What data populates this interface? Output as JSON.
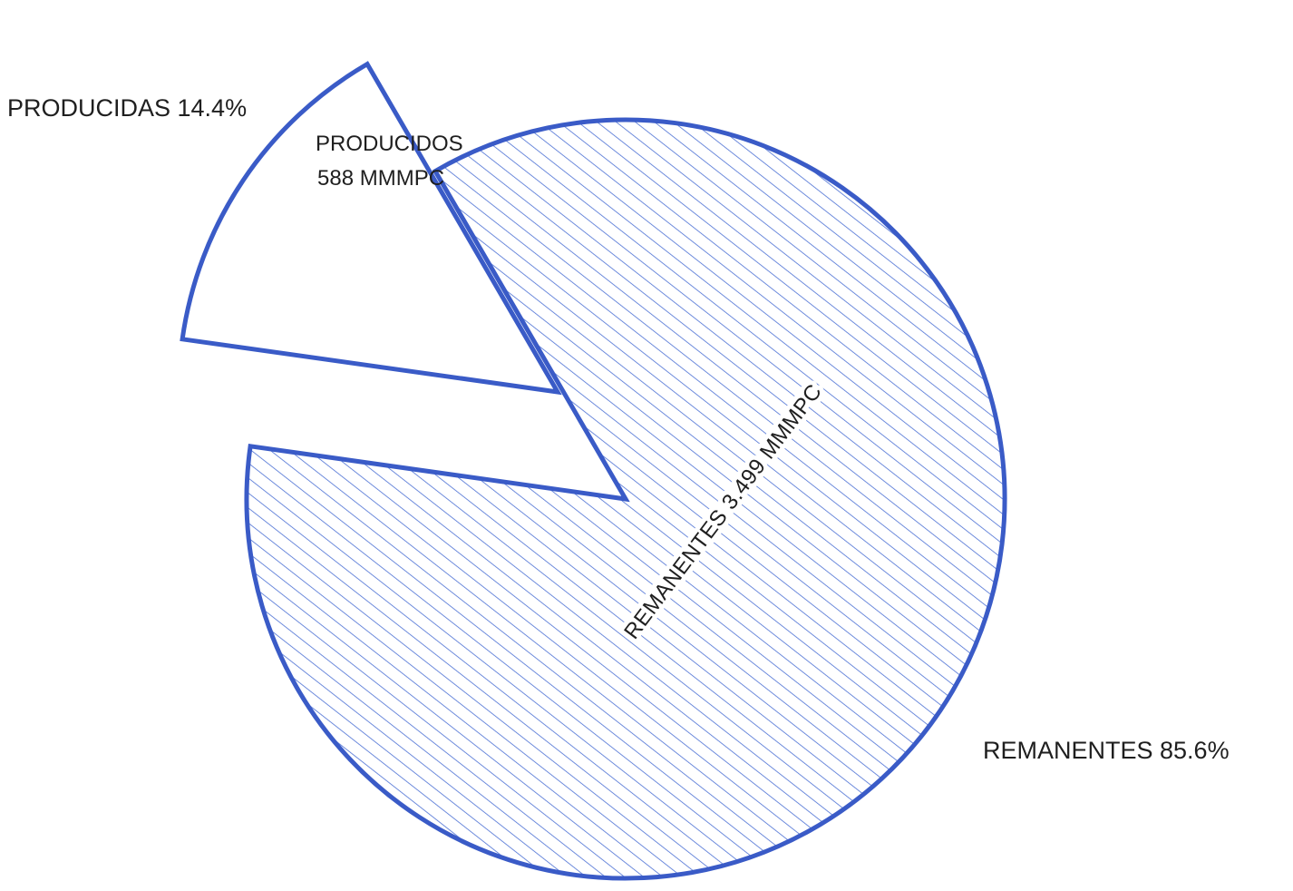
{
  "chart_data": {
    "type": "pie",
    "title": "",
    "slices": [
      {
        "key": "remanentes",
        "category": "REMANENTES",
        "percent": 85.6,
        "value": 3499,
        "outer_label": "REMANENTES  85.6%",
        "inner_label": "REMANENTES  3.499 MMMPC",
        "fill": "hatched",
        "exploded": false
      },
      {
        "key": "producidos",
        "category": "PRODUCIDOS",
        "percent": 14.4,
        "value": 588,
        "outer_label": "PRODUCIDAS 14.4%",
        "inner_label_line1": "PRODUCIDOS",
        "inner_label_line2": "588  MMMPC",
        "fill": "none",
        "exploded": true
      }
    ],
    "unit": "MMMPC",
    "legend": "none"
  },
  "colors": {
    "stroke": "#3a5bc7",
    "hatch": "#4a6fd4",
    "text": "#1f1f1f",
    "background": "#ffffff"
  }
}
